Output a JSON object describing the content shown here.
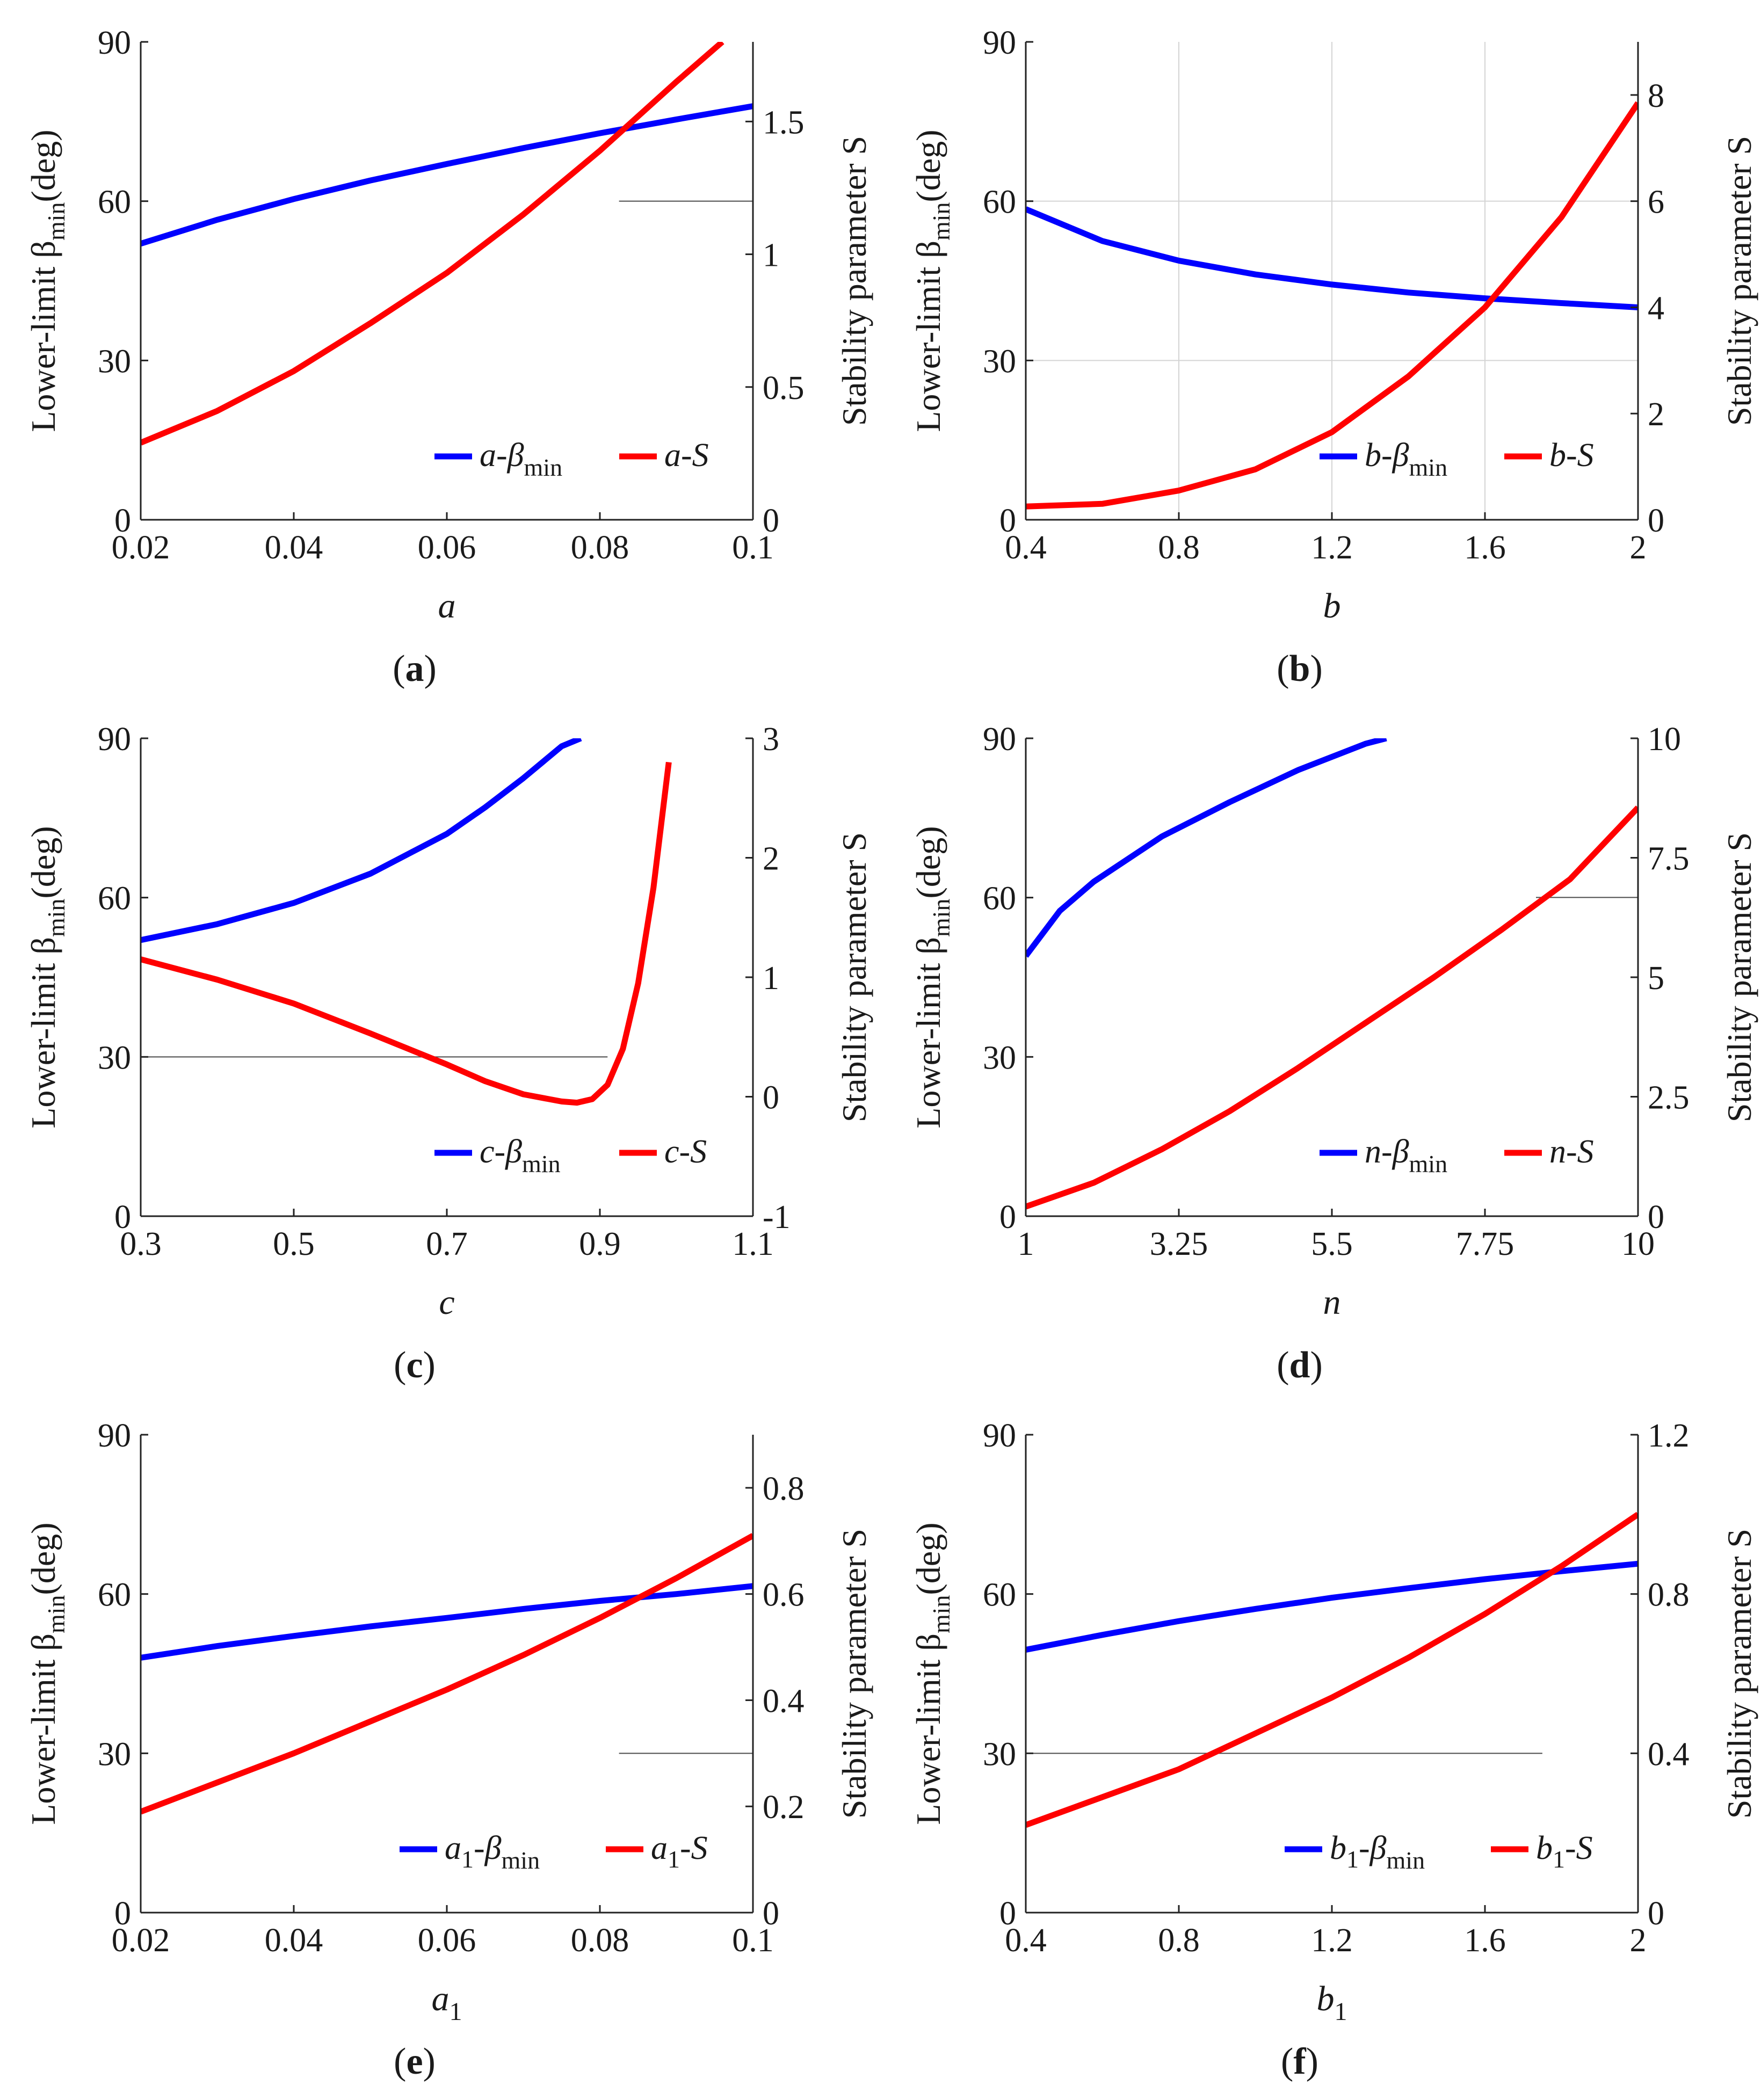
{
  "figure_colors": {
    "beta_line": "#0000ff",
    "s_line": "#ff0000",
    "axes": "#222222",
    "grid": "#d4d4d4",
    "reference": "#4a4a4a"
  },
  "shared": {
    "y_left_label": "Lower-limit β",
    "y_left_sub": "min",
    "y_left_unit": "(deg)",
    "y_right_label": "Stability parameter S",
    "legend_beta_sub": "min"
  },
  "chart_data": [
    {
      "id": "a",
      "type": "line",
      "caption_letter": "a",
      "xlabel": "a",
      "xlabel_sub": "",
      "xlim": [
        0.02,
        0.1
      ],
      "xticks": [
        0.02,
        0.04,
        0.06,
        0.08,
        0.1
      ],
      "xtick_labels": [
        "0.02",
        "0.04",
        "0.06",
        "0.08",
        "0.1"
      ],
      "ylim_left": [
        0,
        90
      ],
      "yticks_left": [
        0,
        30,
        60,
        90
      ],
      "ytick_labels_left": [
        "0",
        "30",
        "60",
        "90"
      ],
      "ylim_right": [
        0,
        1.8
      ],
      "yticks_right": [
        0,
        0.5,
        1,
        1.5
      ],
      "ytick_labels_right": [
        "0",
        "0.5",
        "1",
        "1.5"
      ],
      "grid": false,
      "legend_position": "bottom-right",
      "reference_line": {
        "axis": "right",
        "y": 1.2,
        "x_from": 0.0825,
        "x_to": 0.1
      },
      "series": [
        {
          "name": "β_min",
          "legend_label": "a-β",
          "axis": "left",
          "color": "#0000ff",
          "x": [
            0.02,
            0.03,
            0.04,
            0.05,
            0.06,
            0.07,
            0.08,
            0.09,
            0.1
          ],
          "y": [
            52.0,
            56.5,
            60.4,
            63.9,
            67.0,
            70.0,
            72.8,
            75.4,
            77.9
          ]
        },
        {
          "name": "S",
          "legend_label": "a-S",
          "axis": "right",
          "color": "#ff0000",
          "x": [
            0.02,
            0.03,
            0.04,
            0.05,
            0.06,
            0.07,
            0.08,
            0.09,
            0.096
          ],
          "y": [
            0.29,
            0.41,
            0.56,
            0.74,
            0.93,
            1.15,
            1.39,
            1.65,
            1.8
          ]
        }
      ]
    },
    {
      "id": "b",
      "type": "line",
      "caption_letter": "b",
      "xlabel": "b",
      "xlabel_sub": "",
      "xlim": [
        0.4,
        2
      ],
      "xticks": [
        0.4,
        0.8,
        1.2,
        1.6,
        2
      ],
      "xtick_labels": [
        "0.4",
        "0.8",
        "1.2",
        "1.6",
        "2"
      ],
      "ylim_left": [
        0,
        90
      ],
      "yticks_left": [
        0,
        30,
        60,
        90
      ],
      "ytick_labels_left": [
        "0",
        "30",
        "60",
        "90"
      ],
      "ylim_right": [
        0,
        9
      ],
      "yticks_right": [
        0,
        2,
        4,
        6,
        8
      ],
      "ytick_labels_right": [
        "0",
        "2",
        "4",
        "6",
        "8"
      ],
      "grid": true,
      "legend_position": "bottom-right",
      "reference_line": null,
      "series": [
        {
          "name": "β_min",
          "legend_label": "b-β",
          "axis": "left",
          "color": "#0000ff",
          "x": [
            0.4,
            0.6,
            0.8,
            1.0,
            1.2,
            1.4,
            1.6,
            1.8,
            2.0
          ],
          "y": [
            58.5,
            52.5,
            48.8,
            46.2,
            44.3,
            42.8,
            41.7,
            40.8,
            40.0
          ]
        },
        {
          "name": "S",
          "legend_label": "b-S",
          "axis": "right",
          "color": "#ff0000",
          "x": [
            0.4,
            0.6,
            0.8,
            1.0,
            1.2,
            1.4,
            1.6,
            1.8,
            2.0
          ],
          "y": [
            0.25,
            0.3,
            0.55,
            0.95,
            1.65,
            2.7,
            4.0,
            5.7,
            7.85
          ]
        }
      ]
    },
    {
      "id": "c",
      "type": "line",
      "caption_letter": "c",
      "xlabel": "c",
      "xlabel_sub": "",
      "xlim": [
        0.3,
        1.1
      ],
      "xticks": [
        0.3,
        0.5,
        0.7,
        0.9,
        1.1
      ],
      "xtick_labels": [
        "0.3",
        "0.5",
        "0.7",
        "0.9",
        "1.1"
      ],
      "ylim_left": [
        0,
        90
      ],
      "yticks_left": [
        0,
        30,
        60,
        90
      ],
      "ytick_labels_left": [
        "0",
        "30",
        "60",
        "90"
      ],
      "ylim_right": [
        -1,
        3
      ],
      "yticks_right": [
        -1,
        0,
        1,
        2,
        3
      ],
      "ytick_labels_right": [
        "-1",
        "0",
        "1",
        "2",
        "3"
      ],
      "grid": false,
      "legend_position": "bottom-right",
      "reference_line": {
        "axis": "left",
        "y": 30,
        "x_from": 0.3,
        "x_to": 0.91
      },
      "series": [
        {
          "name": "β_min",
          "legend_label": "c-β",
          "axis": "left",
          "color": "#0000ff",
          "x": [
            0.3,
            0.4,
            0.5,
            0.6,
            0.7,
            0.75,
            0.8,
            0.85,
            0.875
          ],
          "y": [
            52.0,
            55.0,
            59.0,
            64.5,
            72.0,
            77.0,
            82.5,
            88.5,
            90.0
          ]
        },
        {
          "name": "S",
          "legend_label": "c-S",
          "axis": "right",
          "color": "#ff0000",
          "x": [
            0.3,
            0.4,
            0.5,
            0.6,
            0.7,
            0.75,
            0.8,
            0.85,
            0.87,
            0.89,
            0.91,
            0.93,
            0.95,
            0.97,
            0.99
          ],
          "y": [
            1.15,
            0.98,
            0.78,
            0.53,
            0.27,
            0.13,
            0.02,
            -0.04,
            -0.05,
            -0.02,
            0.1,
            0.4,
            0.95,
            1.75,
            2.8
          ]
        }
      ]
    },
    {
      "id": "d",
      "type": "line",
      "caption_letter": "d",
      "xlabel": "n",
      "xlabel_sub": "",
      "xlim": [
        1,
        10
      ],
      "xticks": [
        1,
        3.25,
        5.5,
        7.75,
        10
      ],
      "xtick_labels": [
        "1",
        "3.25",
        "5.5",
        "7.75",
        "10"
      ],
      "ylim_left": [
        0,
        90
      ],
      "yticks_left": [
        0,
        30,
        60,
        90
      ],
      "ytick_labels_left": [
        "0",
        "30",
        "60",
        "90"
      ],
      "ylim_right": [
        0,
        10
      ],
      "yticks_right": [
        0,
        2.5,
        5,
        7.5,
        10
      ],
      "ytick_labels_right": [
        "0",
        "2.5",
        "5",
        "7.5",
        "10"
      ],
      "grid": false,
      "legend_position": "bottom-right",
      "reference_line": {
        "axis": "right",
        "y": 6.67,
        "x_from": 8.5,
        "x_to": 10
      },
      "series": [
        {
          "name": "β_min",
          "legend_label": "n-β",
          "axis": "left",
          "color": "#0000ff",
          "x": [
            1,
            1.5,
            2,
            3,
            4,
            5,
            6,
            6.3
          ],
          "y": [
            49.0,
            57.5,
            63.0,
            71.5,
            78.0,
            84.0,
            89.0,
            90.0
          ]
        },
        {
          "name": "S",
          "legend_label": "n-S",
          "axis": "right",
          "color": "#ff0000",
          "x": [
            1,
            2,
            3,
            4,
            5,
            6,
            7,
            8,
            9,
            10
          ],
          "y": [
            0.2,
            0.7,
            1.4,
            2.2,
            3.1,
            4.05,
            5.0,
            6.0,
            7.05,
            8.55
          ]
        }
      ]
    },
    {
      "id": "e",
      "type": "line",
      "caption_letter": "e",
      "xlabel": "a",
      "xlabel_sub": "1",
      "xlim": [
        0.02,
        0.1
      ],
      "xticks": [
        0.02,
        0.04,
        0.06,
        0.08,
        0.1
      ],
      "xtick_labels": [
        "0.02",
        "0.04",
        "0.06",
        "0.08",
        "0.1"
      ],
      "ylim_left": [
        0,
        90
      ],
      "yticks_left": [
        0,
        30,
        60,
        90
      ],
      "ytick_labels_left": [
        "0",
        "30",
        "60",
        "90"
      ],
      "ylim_right": [
        0,
        0.9
      ],
      "yticks_right": [
        0,
        0.2,
        0.4,
        0.6,
        0.8
      ],
      "ytick_labels_right": [
        "0",
        "0.2",
        "0.4",
        "0.6",
        "0.8"
      ],
      "grid": false,
      "legend_position": "bottom-right",
      "reference_line": {
        "axis": "right",
        "y": 0.3,
        "x_from": 0.0825,
        "x_to": 0.1
      },
      "series": [
        {
          "name": "β_min",
          "legend_label": "a",
          "axis": "left",
          "color": "#0000ff",
          "x": [
            0.02,
            0.03,
            0.04,
            0.05,
            0.06,
            0.07,
            0.08,
            0.09,
            0.1
          ],
          "y": [
            48.0,
            50.2,
            52.1,
            53.9,
            55.5,
            57.2,
            58.7,
            60.0,
            61.5
          ]
        },
        {
          "name": "S",
          "legend_label": "a",
          "axis": "right",
          "color": "#ff0000",
          "x": [
            0.02,
            0.03,
            0.04,
            0.05,
            0.06,
            0.07,
            0.08,
            0.09,
            0.1
          ],
          "y": [
            0.19,
            0.245,
            0.3,
            0.36,
            0.42,
            0.485,
            0.555,
            0.63,
            0.71
          ]
        }
      ]
    },
    {
      "id": "f",
      "type": "line",
      "caption_letter": "f",
      "xlabel": "b",
      "xlabel_sub": "1",
      "xlim": [
        0.4,
        2
      ],
      "xticks": [
        0.4,
        0.8,
        1.2,
        1.6,
        2
      ],
      "xtick_labels": [
        "0.4",
        "0.8",
        "1.2",
        "1.6",
        "2"
      ],
      "ylim_left": [
        0,
        90
      ],
      "yticks_left": [
        0,
        30,
        60,
        90
      ],
      "ytick_labels_left": [
        "0",
        "30",
        "60",
        "90"
      ],
      "ylim_right": [
        0,
        1.2
      ],
      "yticks_right": [
        0,
        0.4,
        0.8,
        1.2
      ],
      "ytick_labels_right": [
        "0",
        "0.4",
        "0.8",
        "1.2"
      ],
      "grid": false,
      "legend_position": "bottom-right",
      "reference_line": {
        "axis": "left",
        "y": 30,
        "x_from": 0.4,
        "x_to": 1.75
      },
      "series": [
        {
          "name": "β_min",
          "legend_label": "b",
          "axis": "left",
          "color": "#0000ff",
          "x": [
            0.4,
            0.6,
            0.8,
            1.0,
            1.2,
            1.4,
            1.6,
            1.8,
            2.0
          ],
          "y": [
            49.5,
            52.3,
            54.9,
            57.2,
            59.3,
            61.1,
            62.8,
            64.3,
            65.7
          ]
        },
        {
          "name": "S",
          "legend_label": "b",
          "axis": "right",
          "color": "#ff0000",
          "x": [
            0.4,
            0.6,
            0.8,
            1.0,
            1.2,
            1.4,
            1.6,
            1.8,
            2.0
          ],
          "y": [
            0.22,
            0.29,
            0.36,
            0.45,
            0.54,
            0.64,
            0.75,
            0.87,
            1.0
          ]
        }
      ]
    }
  ]
}
